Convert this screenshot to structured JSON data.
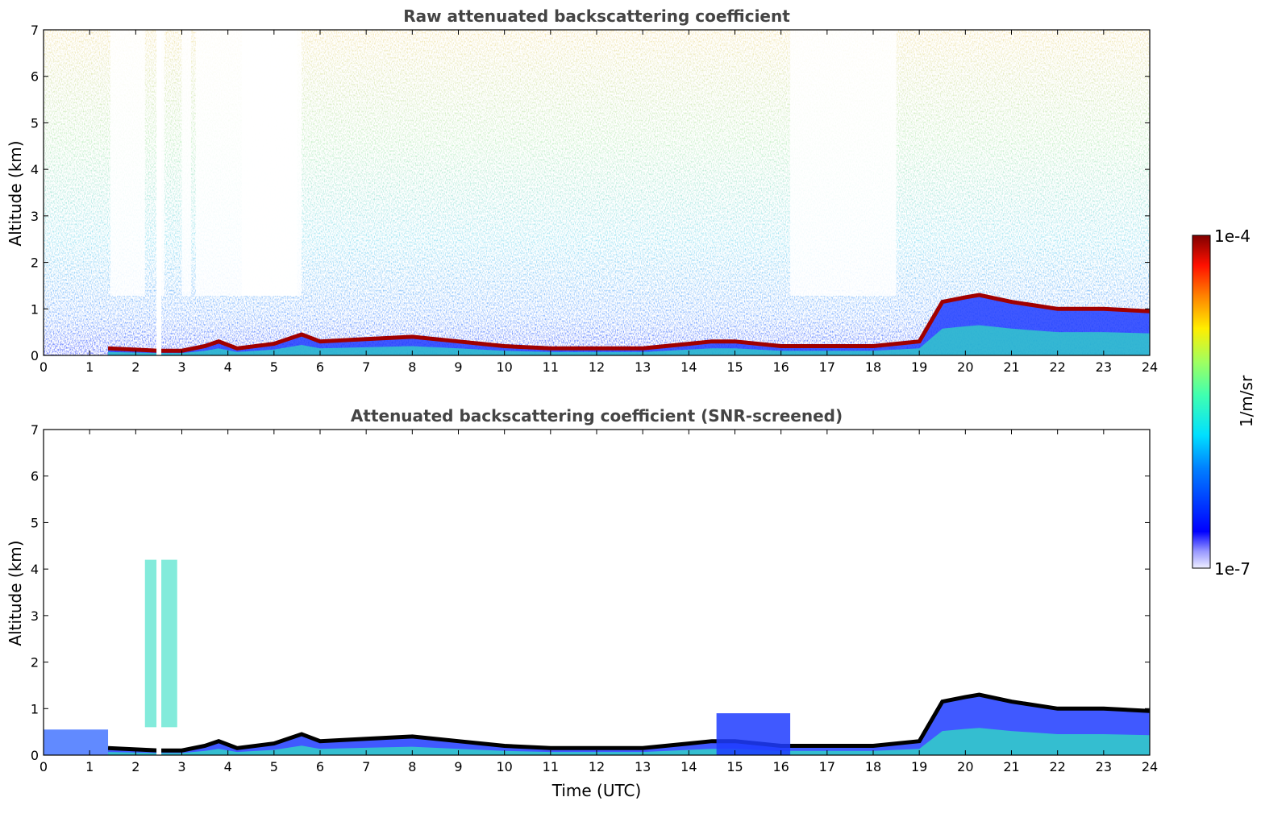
{
  "chart_data": [
    {
      "type": "heatmap",
      "title": "Raw attenuated backscattering coefficient",
      "xlabel": "",
      "ylabel": "Altitude (km)",
      "xlim": [
        0,
        24
      ],
      "ylim": [
        0,
        7
      ],
      "xticks": [
        "0",
        "1",
        "2",
        "3",
        "4",
        "5",
        "6",
        "7",
        "8",
        "9",
        "10",
        "11",
        "12",
        "13",
        "14",
        "15",
        "16",
        "17",
        "18",
        "19",
        "20",
        "21",
        "22",
        "23",
        "24"
      ],
      "yticks": [
        "0",
        "1",
        "2",
        "3",
        "4",
        "5",
        "6",
        "7"
      ],
      "layer_top_km": {
        "time_utc": [
          1.4,
          2.5,
          3.0,
          3.5,
          3.8,
          4.2,
          5.0,
          5.6,
          6.0,
          7.0,
          8.0,
          9.0,
          10.0,
          11.0,
          12.0,
          13.0,
          14.0,
          14.5,
          15.0,
          16.0,
          17.0,
          18.0,
          19.0,
          19.5,
          20.0,
          20.3,
          21.0,
          22.0,
          23.0,
          24.0
        ],
        "height_km": [
          0.15,
          0.1,
          0.1,
          0.2,
          0.3,
          0.15,
          0.25,
          0.45,
          0.3,
          0.35,
          0.4,
          0.3,
          0.2,
          0.15,
          0.15,
          0.15,
          0.25,
          0.3,
          0.3,
          0.2,
          0.2,
          0.2,
          0.3,
          1.15,
          1.25,
          1.3,
          1.15,
          1.0,
          1.0,
          0.95
        ]
      }
    },
    {
      "type": "heatmap",
      "title": "Attenuated backscattering coefficient (SNR-screened)",
      "xlabel": "Time (UTC)",
      "ylabel": "Altitude (km)",
      "xlim": [
        0,
        24
      ],
      "ylim": [
        0,
        7
      ],
      "xticks": [
        "0",
        "1",
        "2",
        "3",
        "4",
        "5",
        "6",
        "7",
        "8",
        "9",
        "10",
        "11",
        "12",
        "13",
        "14",
        "15",
        "16",
        "17",
        "18",
        "19",
        "20",
        "21",
        "22",
        "23",
        "24"
      ],
      "yticks": [
        "0",
        "1",
        "2",
        "3",
        "4",
        "5",
        "6",
        "7"
      ]
    }
  ],
  "colorbar": {
    "max_label": "1e-4",
    "min_label": "1e-7",
    "unit_label": "1/m/sr",
    "scale": "log",
    "range": [
      1e-07,
      0.0001
    ]
  }
}
